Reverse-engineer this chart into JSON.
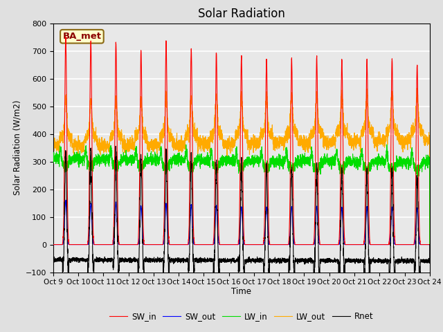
{
  "title": "Solar Radiation",
  "ylabel": "Solar Radiation (W/m2)",
  "xlabel": "Time",
  "ylim": [
    -100,
    800
  ],
  "yticks": [
    -100,
    0,
    100,
    200,
    300,
    400,
    500,
    600,
    700,
    800
  ],
  "xtick_labels": [
    "Oct 9",
    "Oct 10",
    "Oct 11",
    "Oct 12",
    "Oct 13",
    "Oct 14",
    "Oct 15",
    "Oct 16",
    "Oct 17",
    "Oct 18",
    "Oct 19",
    "Oct 20",
    "Oct 21",
    "Oct 22",
    "Oct 23",
    "Oct 24"
  ],
  "n_days": 15,
  "station_label": "BA_met",
  "colors": {
    "SW_in": "#ff0000",
    "SW_out": "#0000ff",
    "LW_in": "#00dd00",
    "LW_out": "#ffaa00",
    "Rnet": "#000000"
  },
  "background_color": "#e0e0e0",
  "SW_in_peaks": [
    750,
    735,
    730,
    700,
    735,
    710,
    695,
    680,
    670,
    675,
    680,
    670,
    670,
    670,
    650
  ],
  "SW_out_peaks": [
    160,
    148,
    150,
    140,
    148,
    143,
    140,
    137,
    135,
    137,
    138,
    135,
    135,
    135,
    132
  ],
  "LW_in_base": 310,
  "LW_out_base_night": 355,
  "LW_out_peak_add": 130,
  "rnet_night": -55
}
